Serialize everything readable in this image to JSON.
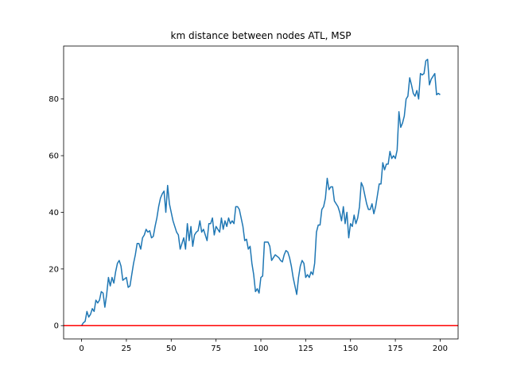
{
  "chart_data": {
    "type": "line",
    "title": "km distance between nodes ATL, MSP",
    "x": [
      0,
      1,
      2,
      3,
      4,
      5,
      6,
      7,
      8,
      9,
      10,
      11,
      12,
      13,
      14,
      15,
      16,
      17,
      18,
      19,
      20,
      21,
      22,
      23,
      24,
      25,
      26,
      27,
      28,
      29,
      30,
      31,
      32,
      33,
      34,
      35,
      36,
      37,
      38,
      39,
      40,
      41,
      42,
      43,
      44,
      45,
      46,
      47,
      48,
      49,
      50,
      51,
      52,
      53,
      54,
      55,
      56,
      57,
      58,
      59,
      60,
      61,
      62,
      63,
      64,
      65,
      66,
      67,
      68,
      69,
      70,
      71,
      72,
      73,
      74,
      75,
      76,
      77,
      78,
      79,
      80,
      81,
      82,
      83,
      84,
      85,
      86,
      87,
      88,
      89,
      90,
      91,
      92,
      93,
      94,
      95,
      96,
      97,
      98,
      99,
      100,
      101,
      102,
      103,
      104,
      105,
      106,
      107,
      108,
      109,
      110,
      111,
      112,
      113,
      114,
      115,
      116,
      117,
      118,
      119,
      120,
      121,
      122,
      123,
      124,
      125,
      126,
      127,
      128,
      129,
      130,
      131,
      132,
      133,
      134,
      135,
      136,
      137,
      138,
      139,
      140,
      141,
      142,
      143,
      144,
      145,
      146,
      147,
      148,
      149,
      150,
      151,
      152,
      153,
      154,
      155,
      156,
      157,
      158,
      159,
      160,
      161,
      162,
      163,
      164,
      165,
      166,
      167,
      168,
      169,
      170,
      171,
      172,
      173,
      174,
      175,
      176,
      177,
      178,
      179,
      180,
      181,
      182,
      183,
      184,
      185,
      186,
      187,
      188,
      189,
      190,
      191,
      192,
      193,
      194,
      195,
      196,
      197,
      198,
      199,
      200
    ],
    "series": [
      {
        "color": "#1f77b4",
        "values": [
          0,
          1,
          1.5,
          5,
          3,
          4,
          6,
          5,
          9,
          8,
          9,
          12,
          11.5,
          6.5,
          11,
          17,
          14,
          17,
          15,
          19,
          22,
          23,
          21,
          16,
          16.5,
          17,
          13.5,
          14,
          18,
          22,
          25,
          29,
          29,
          27,
          31,
          32,
          34,
          33,
          33.5,
          31,
          31.5,
          35,
          38,
          42,
          45,
          46.5,
          47.5,
          40,
          49.5,
          43,
          40,
          37,
          35,
          33,
          32,
          27,
          29,
          31,
          27,
          36,
          30,
          35,
          28,
          32,
          33,
          33.5,
          37,
          33,
          34,
          32,
          30,
          36,
          36,
          38,
          32,
          35,
          34,
          33,
          38,
          34,
          37,
          35,
          38,
          36,
          37,
          36,
          42,
          42,
          41,
          38,
          35,
          30,
          30.5,
          27,
          28,
          22,
          18,
          12,
          13,
          11.5,
          17,
          17.5,
          29.5,
          29.5,
          29.5,
          28,
          23,
          24,
          25,
          24.5,
          24,
          23,
          22.5,
          25,
          26.5,
          26,
          24,
          21,
          17,
          14,
          11,
          17,
          21,
          23,
          22,
          17,
          18,
          17,
          19,
          18,
          22,
          33,
          35.5,
          35.5,
          41,
          42,
          45,
          52,
          48,
          49,
          49,
          44,
          43,
          42,
          40,
          37,
          42,
          36,
          40,
          31,
          36,
          35,
          39,
          36,
          38,
          42,
          50.5,
          49,
          46,
          43,
          41,
          41,
          43,
          39.5,
          42,
          46,
          50,
          50,
          57.5,
          55,
          57,
          57,
          61.5,
          59,
          60,
          59,
          62,
          75.5,
          70,
          71.5,
          74,
          80,
          81,
          87.5,
          85,
          82,
          81,
          83,
          80,
          89,
          88.5,
          89,
          93.5,
          94,
          85,
          87,
          88,
          89,
          81.5,
          82,
          81.5
        ]
      }
    ],
    "hline": {
      "value": 0,
      "color": "#ff0000"
    },
    "xlim": [
      -10,
      210
    ],
    "ylim": [
      -4.7,
      98.7
    ],
    "xticks": [
      0,
      25,
      50,
      75,
      100,
      125,
      150,
      175,
      200
    ],
    "yticks": [
      0,
      20,
      40,
      60,
      80
    ]
  }
}
